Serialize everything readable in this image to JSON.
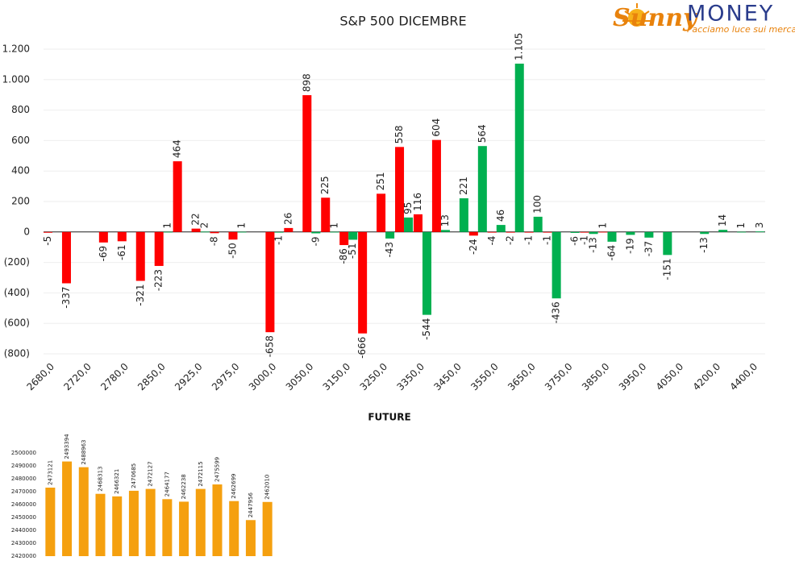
{
  "logo": {
    "brand1": "Sunny",
    "brand2": "MONEY",
    "tagline": "Facciamo luce sui mercati"
  },
  "chart_data": [
    {
      "type": "bar",
      "title": "S&P 500 DICEMBRE",
      "categories": [
        "2680,0",
        null,
        "2720,0",
        null,
        "2780,0",
        null,
        "2850,0",
        null,
        "2925,0",
        null,
        "2975,0",
        null,
        "3000,0",
        null,
        "3050,0",
        null,
        "3150,0",
        null,
        "3250,0",
        null,
        "3350,0",
        null,
        "3450,0",
        null,
        "3550,0",
        null,
        "3650,0",
        null,
        "3750,0",
        null,
        "3850,0",
        null,
        "3950,0",
        null,
        "4050,0",
        null,
        "4200,0",
        null,
        "4400,0"
      ],
      "series": [
        {
          "color": "#ff0000",
          "values": [
            -5,
            -337,
            null,
            -69,
            -61,
            -321,
            -223,
            464,
            22,
            -8,
            -50,
            null,
            -658,
            26,
            898,
            225,
            -86,
            -666,
            251,
            558,
            116,
            604,
            null,
            -24,
            -4,
            -2,
            -1,
            -1,
            null,
            -1,
            1,
            null,
            null,
            null,
            null,
            null,
            null,
            null,
            null
          ]
        },
        {
          "color": "#00b050",
          "values": [
            null,
            null,
            null,
            null,
            null,
            null,
            1,
            null,
            2,
            null,
            1,
            null,
            -1,
            null,
            -9,
            1,
            -51,
            null,
            -43,
            95,
            -544,
            13,
            221,
            564,
            46,
            1105,
            100,
            -436,
            -6,
            -13,
            -64,
            -19,
            -37,
            -151,
            null,
            -13,
            14,
            1,
            3
          ],
          "value_labels": [
            null,
            null,
            null,
            null,
            null,
            null,
            null,
            null,
            null,
            null,
            null,
            null,
            null,
            null,
            null,
            null,
            null,
            null,
            null,
            null,
            null,
            null,
            null,
            null,
            null,
            "1.105",
            null,
            null,
            null,
            null,
            null,
            null,
            null,
            null,
            null,
            null,
            null,
            null,
            null
          ]
        }
      ],
      "negative_label_color": "#e00000",
      "ylim": [
        -800,
        1200
      ],
      "yticks": [
        {
          "value": -800,
          "label": "(800)"
        },
        {
          "value": -600,
          "label": "(600)"
        },
        {
          "value": -400,
          "label": "(400)"
        },
        {
          "value": -200,
          "label": "(200)"
        },
        0,
        200,
        400,
        600,
        800,
        {
          "value": 1000,
          "label": "1.000"
        },
        {
          "value": 1200,
          "label": "1.200"
        }
      ],
      "grid": true
    },
    {
      "type": "bar",
      "title": "FUTURE",
      "values": [
        2473121,
        2493394,
        2488963,
        2468313,
        2466321,
        2470685,
        2472127,
        2464177,
        2462238,
        2472115,
        2475599,
        2462699,
        2447956,
        2462010
      ],
      "color": "#f5a00f",
      "ylim": [
        2420000,
        2500000
      ],
      "yticks": [
        2420000,
        2430000,
        2440000,
        2450000,
        2460000,
        2470000,
        2480000,
        2490000,
        2500000
      ],
      "grid": false
    }
  ]
}
